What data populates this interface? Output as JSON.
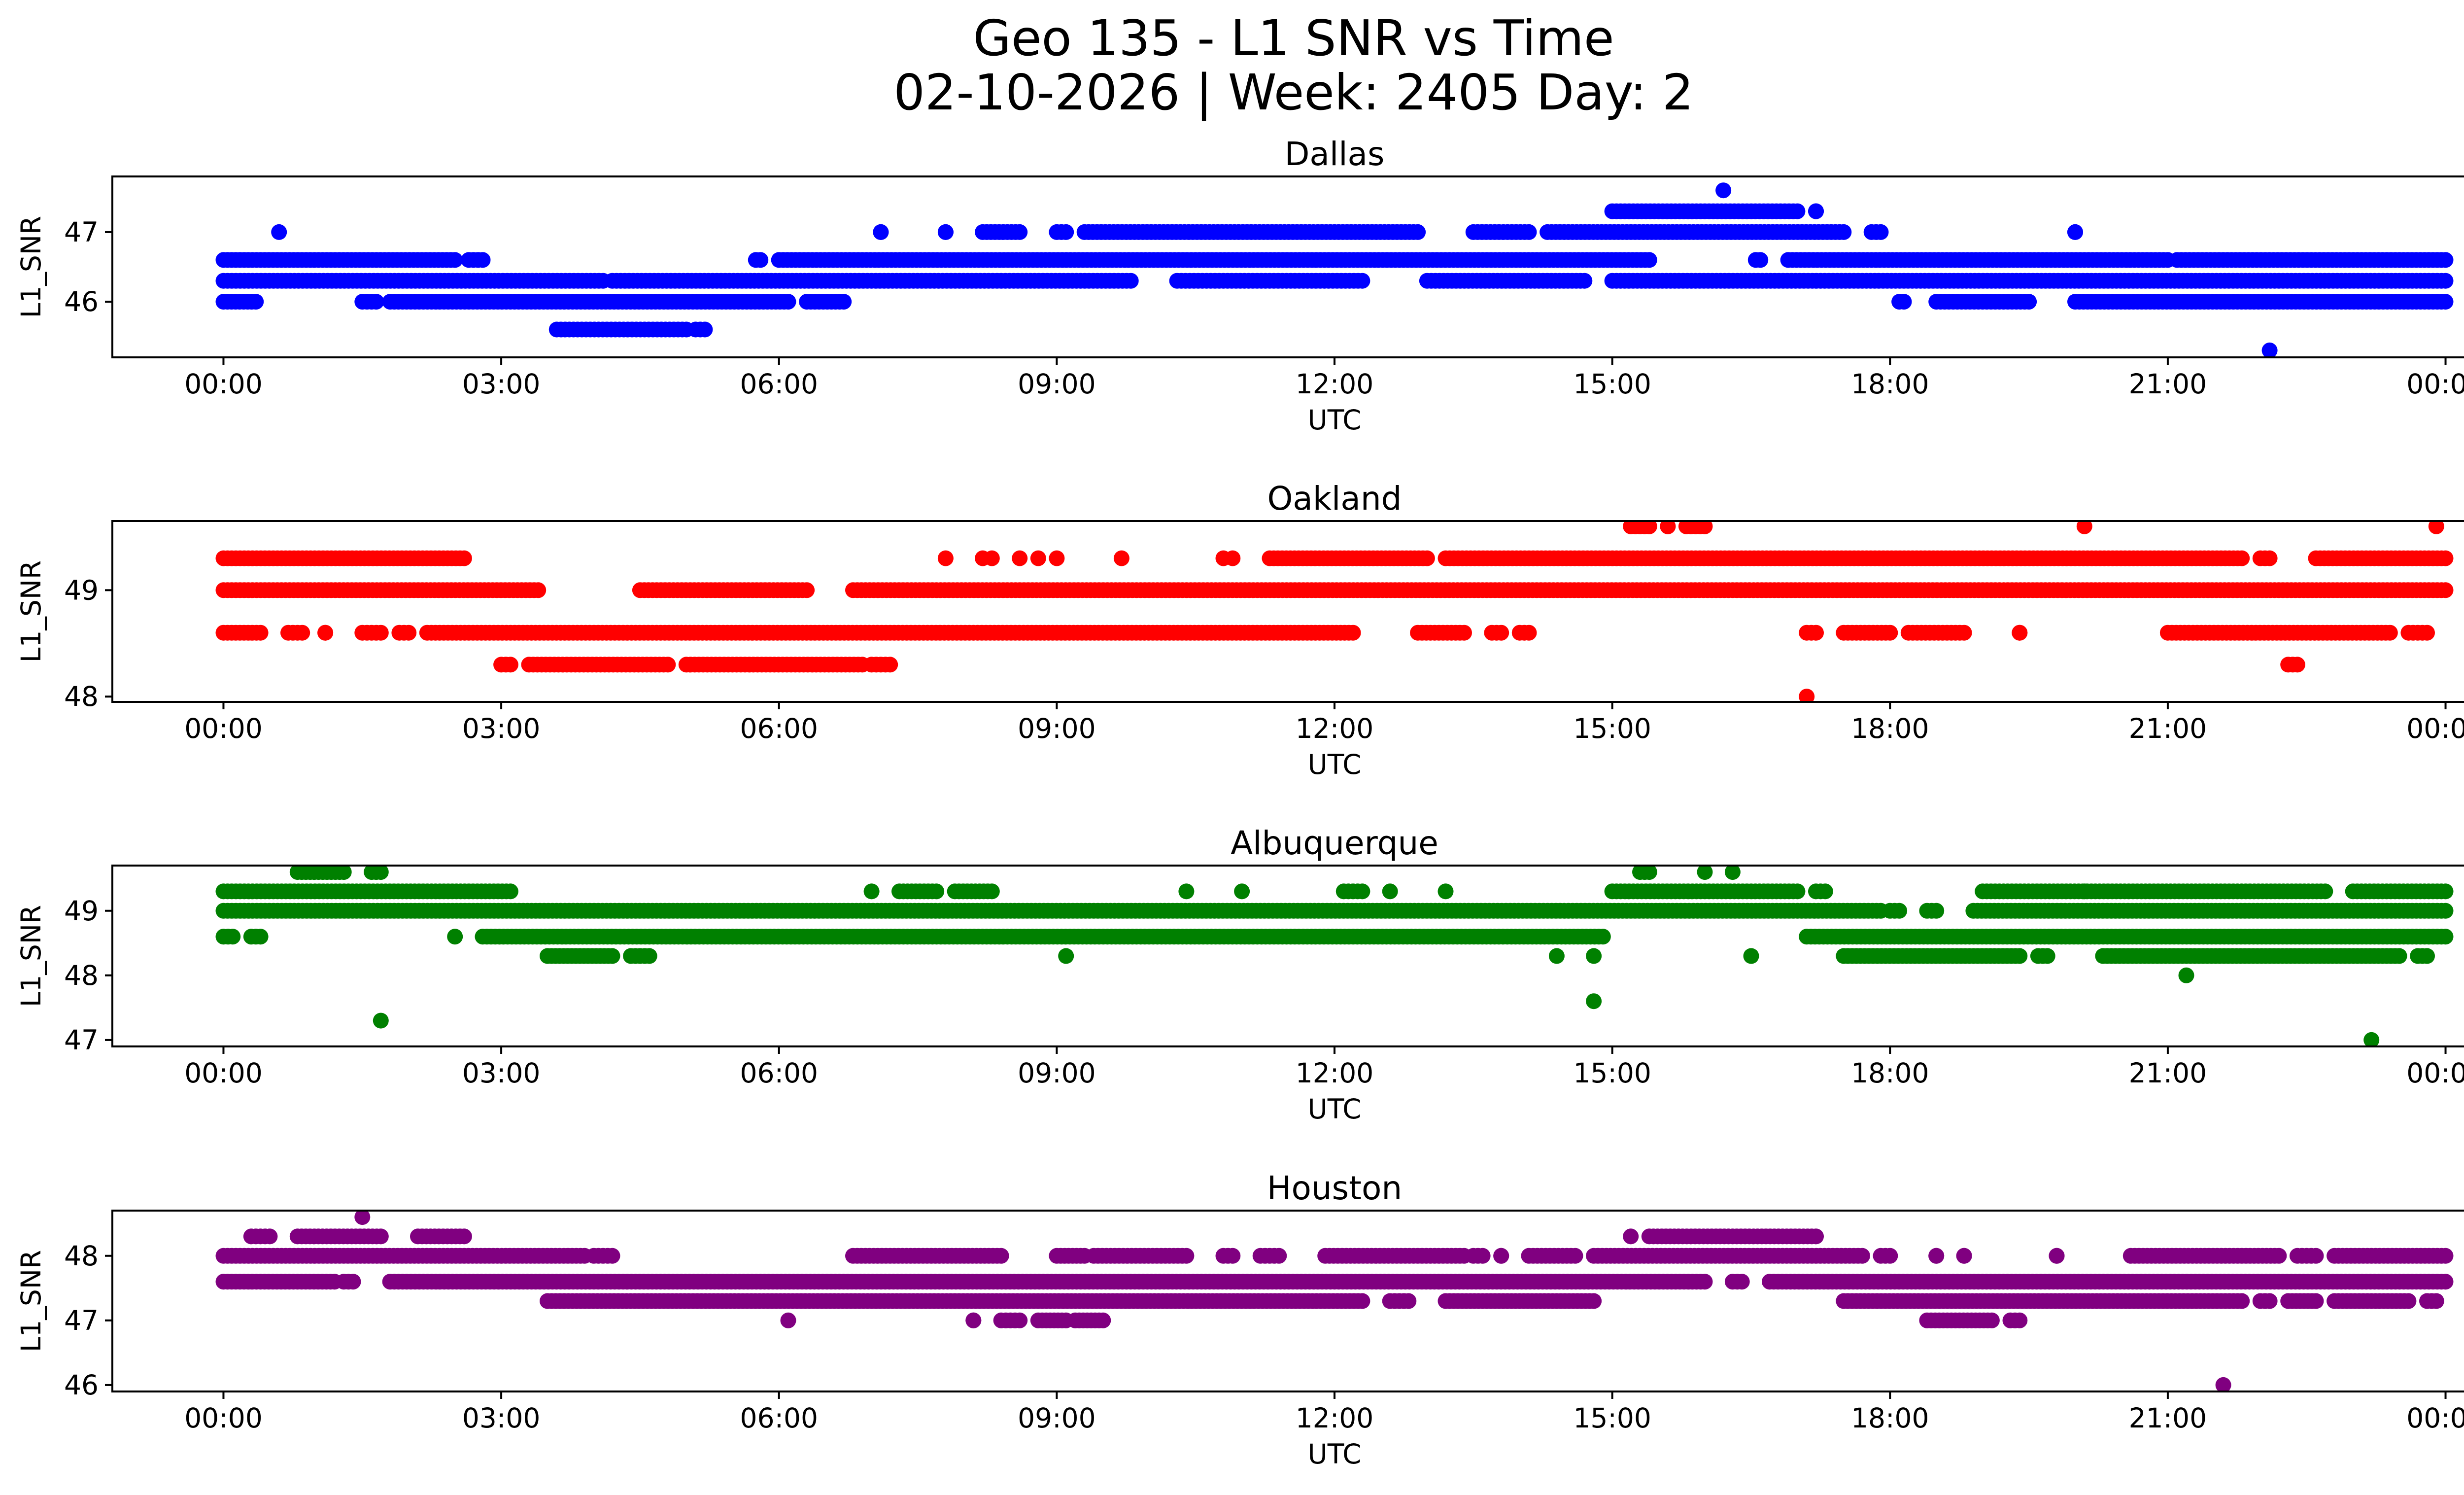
{
  "figure": {
    "title_line1": "Geo 135 - L1 SNR vs Time",
    "title_line2": "02-10-2026 | Week: 2405 Day: 2"
  },
  "chart_data": [
    {
      "type": "scatter",
      "title": "Dallas",
      "xlabel": "UTC",
      "ylabel": "L1_SNR",
      "color": "#0000ff",
      "xticks": [
        "00:00",
        "03:00",
        "06:00",
        "09:00",
        "12:00",
        "15:00",
        "18:00",
        "21:00",
        "00:00"
      ],
      "yticks": [
        46,
        47
      ],
      "xlim_hours": [
        -1.2,
        25.2
      ],
      "ylim": [
        45.2,
        47.8
      ],
      "grid": false,
      "series": [
        {
          "bands": [
            {
              "y": 46.6,
              "segments": [
                [
                  0.0,
                  2.5
                ],
                [
                  2.65,
                  2.8
                ],
                [
                  5.75,
                  5.8
                ],
                [
                  6.0,
                  15.4
                ],
                [
                  16.55,
                  16.6
                ],
                [
                  16.9,
                  21.0
                ],
                [
                  21.1,
                  24.0
                ]
              ]
            },
            {
              "y": 46.3,
              "segments": [
                [
                  0.0,
                  4.1
                ],
                [
                  4.2,
                  9.8
                ],
                [
                  10.3,
                  12.3
                ],
                [
                  13.0,
                  14.7
                ],
                [
                  15.0,
                  24.0
                ]
              ]
            },
            {
              "y": 46.0,
              "segments": [
                [
                  0.0,
                  0.35
                ],
                [
                  1.5,
                  1.65
                ],
                [
                  1.8,
                  6.1
                ],
                [
                  6.3,
                  6.7
                ],
                [
                  18.1,
                  18.15
                ],
                [
                  18.5,
                  19.5
                ],
                [
                  20.0,
                  24.0
                ]
              ]
            },
            {
              "y": 47.0,
              "segments": [
                [
                  7.1,
                  7.1
                ],
                [
                  7.8,
                  7.8
                ],
                [
                  8.2,
                  8.6
                ],
                [
                  9.0,
                  9.1
                ],
                [
                  9.3,
                  12.9
                ],
                [
                  13.5,
                  14.1
                ],
                [
                  14.3,
                  17.5
                ],
                [
                  17.8,
                  17.9
                ],
                [
                  20.0,
                  20.0
                ]
              ]
            },
            {
              "y": 45.6,
              "segments": [
                [
                  3.6,
                  5.0
                ],
                [
                  5.1,
                  5.2
                ]
              ]
            },
            {
              "y": 47.3,
              "segments": [
                [
                  15.0,
                  17.0
                ],
                [
                  17.2,
                  17.2
                ]
              ]
            }
          ],
          "points": [
            [
              0.6,
              47.0
            ],
            [
              16.2,
              47.6
            ],
            [
              22.1,
              45.3
            ]
          ]
        }
      ]
    },
    {
      "type": "scatter",
      "title": "Oakland",
      "xlabel": "UTC",
      "ylabel": "L1_SNR",
      "color": "#ff0000",
      "xticks": [
        "00:00",
        "03:00",
        "06:00",
        "09:00",
        "12:00",
        "15:00",
        "18:00",
        "21:00",
        "00:00"
      ],
      "yticks": [
        48,
        49
      ],
      "xlim_hours": [
        -1.2,
        25.2
      ],
      "ylim": [
        47.95,
        49.65
      ],
      "grid": false,
      "series": [
        {
          "bands": [
            {
              "y": 49.3,
              "segments": [
                [
                  0.0,
                  2.6
                ],
                [
                  11.3,
                  13.0
                ],
                [
                  13.2,
                  21.8
                ],
                [
                  22.0,
                  22.1
                ],
                [
                  22.6,
                  24.0
                ]
              ]
            },
            {
              "y": 49.0,
              "segments": [
                [
                  0.0,
                  3.4
                ],
                [
                  4.5,
                  6.3
                ],
                [
                  6.8,
                  24.0
                ]
              ]
            },
            {
              "y": 48.6,
              "segments": [
                [
                  0.0,
                  0.4
                ],
                [
                  0.7,
                  0.85
                ],
                [
                  1.1,
                  1.1
                ],
                [
                  1.5,
                  1.7
                ],
                [
                  1.9,
                  2.0
                ],
                [
                  2.2,
                  12.2
                ],
                [
                  12.9,
                  13.4
                ],
                [
                  13.7,
                  13.8
                ],
                [
                  14.0,
                  14.1
                ],
                [
                  17.1,
                  17.2
                ],
                [
                  17.5,
                  18.0
                ],
                [
                  18.2,
                  18.8
                ],
                [
                  19.4,
                  19.4
                ],
                [
                  21.0,
                  23.4
                ],
                [
                  23.6,
                  23.8
                ]
              ]
            },
            {
              "y": 48.3,
              "segments": [
                [
                  3.0,
                  3.1
                ],
                [
                  3.3,
                  4.8
                ],
                [
                  5.0,
                  6.9
                ],
                [
                  7.0,
                  7.2
                ],
                [
                  22.3,
                  22.4
                ]
              ]
            },
            {
              "y": 49.6,
              "segments": [
                [
                  15.2,
                  15.4
                ],
                [
                  15.6,
                  15.6
                ],
                [
                  15.8,
                  16.0
                ]
              ]
            }
          ],
          "points": [
            [
              7.8,
              49.3
            ],
            [
              8.2,
              49.3
            ],
            [
              8.3,
              49.3
            ],
            [
              8.6,
              49.3
            ],
            [
              8.8,
              49.3
            ],
            [
              9.0,
              49.3
            ],
            [
              9.7,
              49.3
            ],
            [
              10.8,
              49.3
            ],
            [
              10.9,
              49.3
            ],
            [
              20.1,
              49.6
            ],
            [
              23.9,
              49.6
            ],
            [
              17.1,
              48.0
            ]
          ]
        }
      ]
    },
    {
      "type": "scatter",
      "title": "Albuquerque",
      "xlabel": "UTC",
      "ylabel": "L1_SNR",
      "color": "#008000",
      "xticks": [
        "00:00",
        "03:00",
        "06:00",
        "09:00",
        "12:00",
        "15:00",
        "18:00",
        "21:00",
        "00:00"
      ],
      "yticks": [
        47,
        48,
        49
      ],
      "xlim_hours": [
        -1.2,
        25.2
      ],
      "ylim": [
        46.9,
        49.7
      ],
      "grid": false,
      "series": [
        {
          "bands": [
            {
              "y": 49.3,
              "segments": [
                [
                  0.0,
                  3.1
                ],
                [
                  7.3,
                  7.7
                ],
                [
                  7.9,
                  8.3
                ],
                [
                  12.1,
                  12.3
                ],
                [
                  15.0,
                  17.0
                ],
                [
                  17.2,
                  17.3
                ],
                [
                  19.0,
                  22.7
                ],
                [
                  23.0,
                  24.0
                ]
              ]
            },
            {
              "y": 49.0,
              "segments": [
                [
                  0.0,
                  17.9
                ],
                [
                  18.0,
                  18.1
                ],
                [
                  18.4,
                  18.5
                ],
                [
                  18.9,
                  24.0
                ]
              ]
            },
            {
              "y": 48.6,
              "segments": [
                [
                  0.0,
                  0.1
                ],
                [
                  0.3,
                  0.4
                ],
                [
                  2.8,
                  14.9
                ],
                [
                  17.1,
                  24.0
                ]
              ]
            },
            {
              "y": 48.3,
              "segments": [
                [
                  3.5,
                  4.2
                ],
                [
                  4.4,
                  4.6
                ],
                [
                  17.5,
                  19.4
                ],
                [
                  19.6,
                  19.7
                ],
                [
                  20.3,
                  23.5
                ],
                [
                  23.7,
                  23.8
                ]
              ]
            },
            {
              "y": 49.6,
              "segments": [
                [
                  0.8,
                  1.3
                ],
                [
                  1.6,
                  1.7
                ],
                [
                  15.3,
                  15.4
                ]
              ]
            }
          ],
          "points": [
            [
              2.5,
              48.6
            ],
            [
              16.0,
              49.6
            ],
            [
              16.3,
              49.6
            ],
            [
              7.0,
              49.3
            ],
            [
              10.4,
              49.3
            ],
            [
              11.0,
              49.3
            ],
            [
              12.6,
              49.3
            ],
            [
              13.2,
              49.3
            ],
            [
              20.1,
              49.3
            ],
            [
              9.1,
              48.3
            ],
            [
              14.4,
              48.3
            ],
            [
              14.8,
              48.3
            ],
            [
              16.5,
              48.3
            ],
            [
              1.7,
              47.3
            ],
            [
              14.8,
              47.6
            ],
            [
              21.2,
              48.0
            ],
            [
              23.2,
              47.0
            ]
          ]
        }
      ]
    },
    {
      "type": "scatter",
      "title": "Houston",
      "xlabel": "UTC",
      "ylabel": "L1_SNR",
      "color": "#800080",
      "xticks": [
        "00:00",
        "03:00",
        "06:00",
        "09:00",
        "12:00",
        "15:00",
        "18:00",
        "21:00",
        "00:00"
      ],
      "yticks": [
        46,
        47,
        48
      ],
      "xlim_hours": [
        -1.2,
        25.2
      ],
      "ylim": [
        45.9,
        48.7
      ],
      "grid": false,
      "series": [
        {
          "bands": [
            {
              "y": 48.0,
              "segments": [
                [
                  0.0,
                  3.9
                ],
                [
                  4.0,
                  4.2
                ],
                [
                  6.8,
                  8.4
                ],
                [
                  9.0,
                  9.3
                ],
                [
                  9.4,
                  10.4
                ],
                [
                  10.8,
                  10.9
                ],
                [
                  11.2,
                  11.4
                ],
                [
                  11.9,
                  13.4
                ],
                [
                  13.5,
                  13.6
                ],
                [
                  13.8,
                  13.8
                ],
                [
                  14.1,
                  14.6
                ],
                [
                  14.8,
                  17.7
                ],
                [
                  17.9,
                  18.0
                ],
                [
                  18.5,
                  18.5
                ],
                [
                  18.8,
                  18.8
                ],
                [
                  19.8,
                  19.8
                ],
                [
                  20.6,
                  22.2
                ],
                [
                  22.4,
                  22.6
                ],
                [
                  22.8,
                  24.0
                ]
              ]
            },
            {
              "y": 47.6,
              "segments": [
                [
                  0.0,
                  1.2
                ],
                [
                  1.3,
                  1.4
                ],
                [
                  1.8,
                  16.0
                ],
                [
                  16.3,
                  16.4
                ],
                [
                  16.7,
                  24.0
                ]
              ]
            },
            {
              "y": 47.3,
              "segments": [
                [
                  3.5,
                  12.3
                ],
                [
                  12.6,
                  12.8
                ],
                [
                  13.2,
                  14.8
                ],
                [
                  17.5,
                  21.8
                ],
                [
                  22.0,
                  22.1
                ],
                [
                  22.3,
                  22.6
                ],
                [
                  22.8,
                  23.6
                ],
                [
                  23.8,
                  23.9
                ]
              ]
            },
            {
              "y": 48.3,
              "segments": [
                [
                  0.3,
                  0.5
                ],
                [
                  0.8,
                  1.7
                ],
                [
                  2.1,
                  2.6
                ],
                [
                  15.4,
                  17.2
                ]
              ]
            },
            {
              "y": 47.0,
              "segments": [
                [
                  8.1,
                  8.1
                ],
                [
                  8.4,
                  8.6
                ],
                [
                  8.8,
                  9.1
                ],
                [
                  9.2,
                  9.5
                ],
                [
                  18.4,
                  19.1
                ],
                [
                  19.3,
                  19.4
                ]
              ]
            }
          ],
          "points": [
            [
              1.5,
              48.6
            ],
            [
              6.1,
              47.0
            ],
            [
              21.6,
              46.0
            ],
            [
              15.2,
              48.3
            ]
          ]
        }
      ]
    }
  ]
}
